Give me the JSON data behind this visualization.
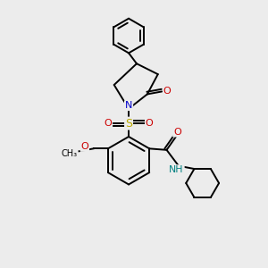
{
  "bg_color": "#ececec",
  "bond_color": "#000000",
  "atom_colors": {
    "N": "#0000cc",
    "O": "#cc0000",
    "S": "#bbaa00",
    "NH": "#008080",
    "C": "#000000"
  },
  "bond_lw": 1.4,
  "font_size": 7.5
}
